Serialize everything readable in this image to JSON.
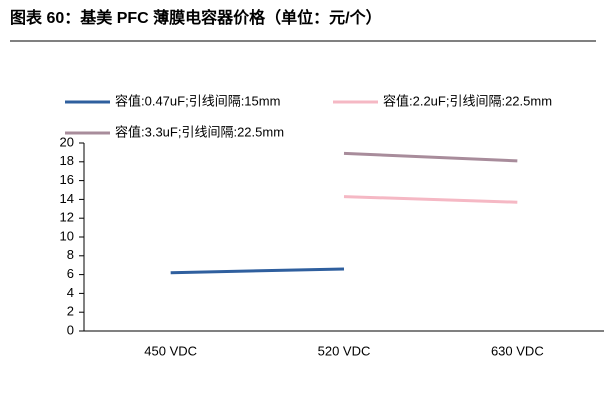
{
  "chart_data": {
    "type": "line",
    "title": "图表 60：基美 PFC 薄膜电容器价格（单位：元/个）",
    "categories": [
      "450 VDC",
      "520 VDC",
      "630 VDC"
    ],
    "series": [
      {
        "name": "容值:0.47uF;引线间隔:15mm",
        "color": "#2f5f9e",
        "values": [
          6.2,
          6.6,
          null
        ]
      },
      {
        "name": "容值:2.2uF;引线间隔:22.5mm",
        "color": "#f5b8c4",
        "values": [
          null,
          14.3,
          13.7
        ]
      },
      {
        "name": "容值:3.3uF;引线间隔:22.5mm",
        "color": "#a88c9b",
        "values": [
          null,
          18.9,
          18.1
        ]
      }
    ],
    "ylim": [
      0,
      20
    ],
    "yticks": [
      0,
      2,
      4,
      6,
      8,
      10,
      12,
      14,
      16,
      18,
      20
    ],
    "grid": false
  }
}
